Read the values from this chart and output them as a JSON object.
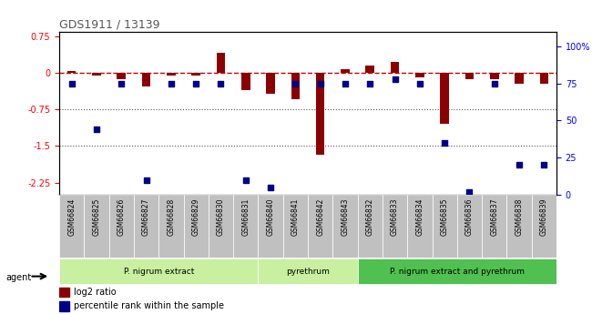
{
  "title": "GDS1911 / 13139",
  "samples": [
    "GSM66824",
    "GSM66825",
    "GSM66826",
    "GSM66827",
    "GSM66828",
    "GSM66829",
    "GSM66830",
    "GSM66831",
    "GSM66840",
    "GSM66841",
    "GSM66842",
    "GSM66843",
    "GSM66832",
    "GSM66833",
    "GSM66834",
    "GSM66835",
    "GSM66836",
    "GSM66837",
    "GSM66838",
    "GSM66839"
  ],
  "log2_ratio": [
    0.03,
    -0.05,
    -0.13,
    -0.28,
    -0.05,
    -0.05,
    0.42,
    -0.35,
    -0.42,
    -0.55,
    -1.68,
    0.08,
    0.15,
    0.22,
    -0.1,
    -1.05,
    -0.13,
    -0.13,
    -0.22,
    -0.22
  ],
  "pct_rank": [
    75,
    44,
    75,
    10,
    75,
    75,
    75,
    10,
    5,
    75,
    75,
    75,
    75,
    78,
    75,
    35,
    2,
    75,
    20,
    20
  ],
  "groups": [
    {
      "label": "P. nigrum extract",
      "start": 0,
      "end": 8,
      "color": "#90ee90"
    },
    {
      "label": "pyrethrum",
      "start": 8,
      "end": 12,
      "color": "#90ee90"
    },
    {
      "label": "P. nigrum extract and pyrethrum",
      "start": 12,
      "end": 20,
      "color": "#32cd32"
    }
  ],
  "ylim_left": [
    -2.5,
    0.85
  ],
  "ylim_right": [
    0,
    110
  ],
  "yticks_left": [
    0.75,
    0,
    -0.75,
    -1.5,
    -2.25
  ],
  "yticks_right": [
    100,
    75,
    50,
    25,
    0
  ],
  "bar_color": "#8b0000",
  "dot_color": "#00008b",
  "hline_color": "#cc0000",
  "dotted_color": "#555555",
  "background_color": "#ffffff"
}
